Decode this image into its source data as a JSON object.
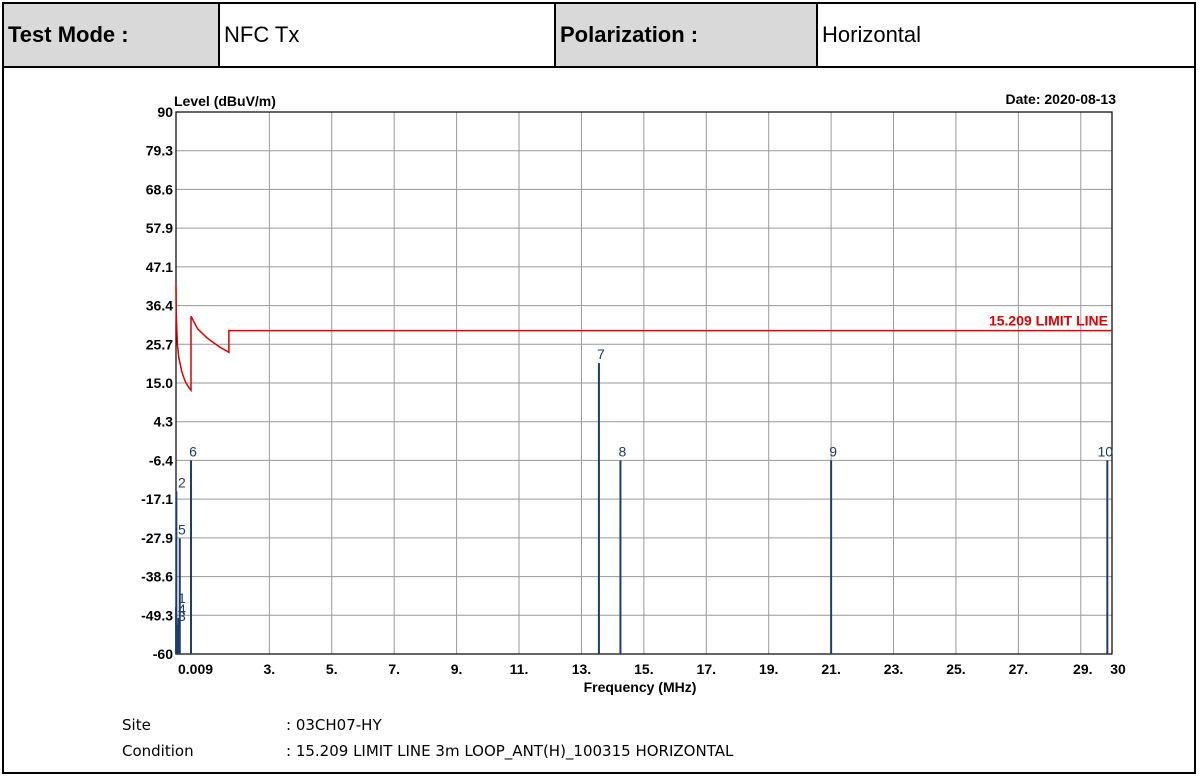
{
  "header": {
    "test_mode_label": "Test Mode :",
    "test_mode_value": "NFC Tx",
    "polarization_label": "Polarization :",
    "polarization_value": "Horizontal"
  },
  "info": {
    "site_label": "Site",
    "site_value": ": 03CH07-HY",
    "condition_label": "Condition",
    "condition_value": ": 15.209 LIMIT LINE 3m LOOP_ANT(H)_100315 HORIZONTAL"
  },
  "chart_data": {
    "type": "line",
    "ylabel": "Level (dBuV/m)",
    "xlabel": "Frequency (MHz)",
    "date_label": "Date: 2020-08-13",
    "ylim": [
      -60,
      90
    ],
    "xlim": [
      0.009,
      30
    ],
    "grid": true,
    "y_ticks": [
      "90",
      "79.3",
      "68.6",
      "57.9",
      "47.1",
      "36.4",
      "25.7",
      "15.0",
      "4.3",
      "-6.4",
      "-17.1",
      "-27.9",
      "-38.6",
      "-49.3",
      "-60"
    ],
    "x_ticks": [
      {
        "v": 0.009,
        "t": "0.009"
      },
      {
        "v": 3,
        "t": "3."
      },
      {
        "v": 5,
        "t": "5."
      },
      {
        "v": 7,
        "t": "7."
      },
      {
        "v": 9,
        "t": "9."
      },
      {
        "v": 11,
        "t": "11."
      },
      {
        "v": 13,
        "t": "13."
      },
      {
        "v": 15,
        "t": "15."
      },
      {
        "v": 17,
        "t": "17."
      },
      {
        "v": 19,
        "t": "19."
      },
      {
        "v": 21,
        "t": "21."
      },
      {
        "v": 23,
        "t": "23."
      },
      {
        "v": 25,
        "t": "25."
      },
      {
        "v": 27,
        "t": "27."
      },
      {
        "v": 29,
        "t": "29."
      },
      {
        "v": 30,
        "t": "30"
      }
    ],
    "limit_line": {
      "name": "15.209 LIMIT LINE",
      "color": "#e00000",
      "points": [
        [
          0.009,
          42.0
        ],
        [
          0.02,
          34.0
        ],
        [
          0.05,
          26.0
        ],
        [
          0.1,
          22.0
        ],
        [
          0.2,
          18.0
        ],
        [
          0.3,
          15.5
        ],
        [
          0.4,
          14.0
        ],
        [
          0.49,
          13.0
        ],
        [
          0.49,
          33.5
        ],
        [
          0.7,
          30.0
        ],
        [
          1.0,
          27.5
        ],
        [
          1.4,
          25.0
        ],
        [
          1.705,
          23.5
        ],
        [
          1.705,
          29.5
        ],
        [
          30,
          29.5
        ]
      ]
    },
    "measurement_color": "#1f3d6b",
    "measurements": [
      {
        "label": "1",
        "x": 0.012,
        "y": -47
      },
      {
        "label": "2",
        "x": 0.02,
        "y": -15
      },
      {
        "label": "3",
        "x": 0.05,
        "y": -52
      },
      {
        "label": "4",
        "x": 0.09,
        "y": -50
      },
      {
        "label": "5",
        "x": 0.13,
        "y": -28
      },
      {
        "label": "6",
        "x": 0.49,
        "y": -6.4
      },
      {
        "label": "7",
        "x": 13.56,
        "y": 20.5
      },
      {
        "label": "8",
        "x": 14.25,
        "y": -6.4
      },
      {
        "label": "9",
        "x": 21.0,
        "y": -6.4
      },
      {
        "label": "10",
        "x": 29.85,
        "y": -6.4
      }
    ]
  }
}
